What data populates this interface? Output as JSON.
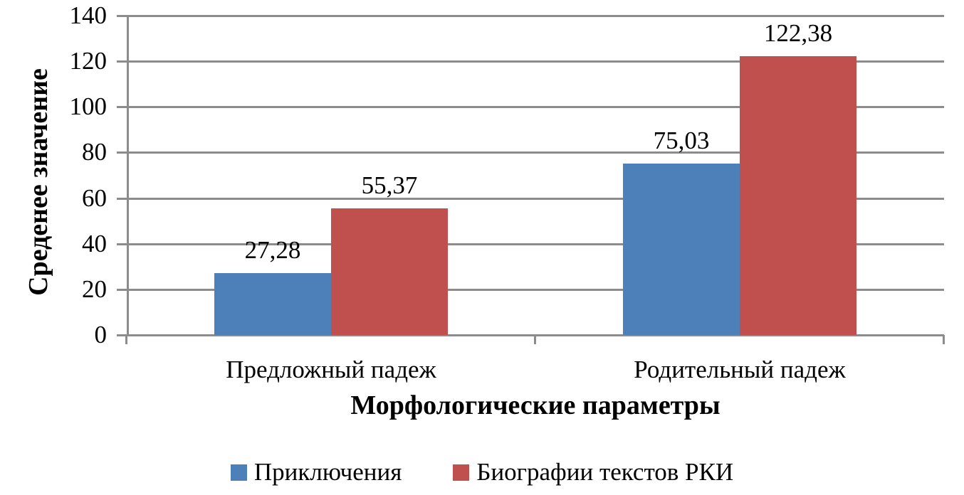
{
  "chart_data": {
    "type": "bar",
    "title": "",
    "xlabel": "Морфологические параметры",
    "ylabel": "Среденее значение",
    "categories": [
      "Предложный падеж",
      "Родительный падеж"
    ],
    "series": [
      {
        "name": "Приключения",
        "color": "#4d7fb8",
        "values": [
          27.28,
          75.03
        ],
        "labels": [
          "27,28",
          "75,03"
        ]
      },
      {
        "name": "Биографии текстов РКИ",
        "color": "#c0504d",
        "values": [
          55.37,
          122.38
        ],
        "labels": [
          "55,37",
          "122,38"
        ]
      }
    ],
    "ylim": [
      0,
      140
    ],
    "yticks": [
      0,
      20,
      40,
      60,
      80,
      100,
      120,
      140
    ],
    "grid": true,
    "gridline_color": "#8c8c8c",
    "legend_position": "bottom"
  }
}
